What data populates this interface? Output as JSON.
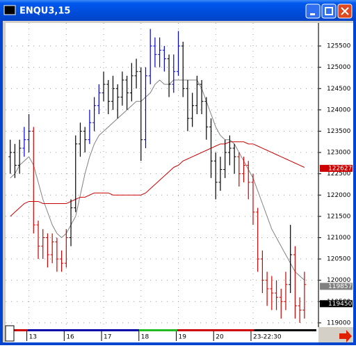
{
  "window_title": "ENQU3,15",
  "chart_data": {
    "type": "ohlc",
    "x": [
      0,
      1,
      2,
      3,
      4,
      5,
      6,
      7,
      8,
      9,
      10,
      11,
      12,
      13,
      14,
      15,
      16,
      17,
      18,
      19,
      20,
      21,
      22,
      23,
      24,
      25,
      26,
      27,
      28,
      29,
      30,
      31,
      32,
      33,
      34,
      35,
      36,
      37,
      38,
      39,
      40,
      41,
      42,
      43,
      44,
      45,
      46,
      47,
      48,
      49,
      50,
      51,
      52,
      53,
      54,
      55,
      56,
      57,
      58,
      59,
      60,
      61,
      62,
      63
    ],
    "open": [
      122900,
      123000,
      122700,
      123100,
      123300,
      123500,
      121300,
      120800,
      121000,
      120600,
      120900,
      120500,
      120400,
      121000,
      121700,
      123200,
      123500,
      123300,
      123700,
      124100,
      124400,
      124600,
      124200,
      124500,
      124300,
      124700,
      124400,
      124800,
      124900,
      123300,
      124800,
      125500,
      125300,
      125400,
      125200,
      124600,
      124900,
      125500,
      124500,
      123800,
      124100,
      124600,
      124200,
      123600,
      122800,
      122300,
      122600,
      123000,
      123100,
      122900,
      122500,
      122700,
      122300,
      121600,
      120500,
      120000,
      119800,
      119700,
      119600,
      119500,
      119900,
      120600,
      119400,
      119300
    ],
    "high": [
      123300,
      123200,
      123300,
      123600,
      123900,
      123600,
      121400,
      121200,
      121100,
      121100,
      121000,
      120700,
      121200,
      121900,
      123400,
      123700,
      123600,
      124000,
      124300,
      124600,
      124900,
      124700,
      124800,
      124600,
      124900,
      124800,
      125100,
      125200,
      125000,
      125000,
      125900,
      125700,
      125700,
      125500,
      125300,
      125300,
      125850,
      125600,
      124700,
      124400,
      124800,
      124700,
      124300,
      123800,
      123000,
      122900,
      123300,
      123400,
      123200,
      123000,
      122900,
      122800,
      122500,
      121700,
      120700,
      120200,
      120100,
      120000,
      119800,
      120200,
      121300,
      120800,
      119600,
      120200
    ],
    "low": [
      122500,
      122400,
      122500,
      122900,
      123000,
      121100,
      120500,
      120500,
      120300,
      120400,
      120200,
      120200,
      120300,
      120800,
      121600,
      122900,
      123000,
      123200,
      123500,
      123900,
      124200,
      123900,
      124000,
      123800,
      124100,
      124000,
      124200,
      124500,
      122800,
      123100,
      124600,
      125000,
      125000,
      124900,
      124300,
      124400,
      124800,
      124300,
      123500,
      123600,
      123900,
      123900,
      123300,
      122400,
      121900,
      122100,
      122400,
      122700,
      122500,
      122200,
      122300,
      121900,
      121300,
      120200,
      119700,
      119400,
      119300,
      119300,
      119100,
      119300,
      119700,
      119100,
      119000,
      119100
    ],
    "close": [
      123000,
      122700,
      123100,
      123300,
      123500,
      121300,
      120800,
      121000,
      120600,
      120900,
      120500,
      120400,
      121000,
      121700,
      123200,
      123500,
      123300,
      123700,
      124100,
      124400,
      124600,
      124200,
      124500,
      124300,
      124700,
      124400,
      124800,
      124900,
      123300,
      124800,
      125500,
      125300,
      125400,
      125200,
      124600,
      124900,
      125500,
      124500,
      123800,
      124100,
      124600,
      124200,
      123600,
      122800,
      122300,
      122600,
      123000,
      123100,
      122900,
      122500,
      122700,
      122300,
      121600,
      120500,
      120000,
      119800,
      119700,
      119600,
      119500,
      119900,
      120600,
      119400,
      119300,
      119900
    ],
    "colors": [
      "#000000",
      "#000000",
      "#000000",
      "#0000cc",
      "#0000cc",
      "#cc0000",
      "#cc0000",
      "#cc0000",
      "#cc0000",
      "#cc0000",
      "#cc0000",
      "#cc0000",
      "#cc0000",
      "#000000",
      "#000000",
      "#000000",
      "#000000",
      "#0000cc",
      "#0000cc",
      "#0000cc",
      "#000000",
      "#000000",
      "#000000",
      "#000000",
      "#000000",
      "#000000",
      "#000000",
      "#000000",
      "#000000",
      "#0000cc",
      "#0000cc",
      "#0000cc",
      "#0000cc",
      "#0000cc",
      "#000000",
      "#0000cc",
      "#0000cc",
      "#000000",
      "#000000",
      "#000000",
      "#000000",
      "#000000",
      "#000000",
      "#000000",
      "#000000",
      "#000000",
      "#000000",
      "#000000",
      "#000000",
      "#cc0000",
      "#cc0000",
      "#cc0000",
      "#cc0000",
      "#cc0000",
      "#cc0000",
      "#cc0000",
      "#cc0000",
      "#cc0000",
      "#cc0000",
      "#cc0000",
      "#000000",
      "#cc0000",
      "#cc0000",
      "#cc0000"
    ],
    "series": [
      {
        "color": "#808080",
        "values": [
          122400,
          122500,
          122700,
          122800,
          122900,
          122700,
          122300,
          121900,
          121600,
          121300,
          121100,
          121000,
          121100,
          121300,
          121500,
          122000,
          122500,
          122900,
          123200,
          123400,
          123500,
          123600,
          123700,
          123800,
          123900,
          124000,
          124100,
          124200,
          124200,
          124300,
          124400,
          124600,
          124700,
          124600,
          124600,
          124700,
          124700,
          124700,
          124700,
          124700,
          124700,
          124500,
          124200,
          123900,
          123600,
          123400,
          123300,
          123300,
          123200,
          123000,
          122800,
          122600,
          122400,
          122100,
          121800,
          121500,
          121200,
          121000,
          120800,
          120600,
          120400,
          120200,
          120100,
          120000
        ]
      },
      {
        "color": "#cc0000",
        "values": [
          121500,
          121600,
          121700,
          121800,
          121850,
          121850,
          121850,
          121800,
          121800,
          121800,
          121800,
          121800,
          121800,
          121850,
          121900,
          121950,
          121950,
          122000,
          122050,
          122050,
          122050,
          122050,
          122000,
          122000,
          122000,
          122000,
          122000,
          122000,
          122000,
          122050,
          122150,
          122250,
          122350,
          122450,
          122550,
          122650,
          122700,
          122800,
          122850,
          122900,
          122950,
          123000,
          123050,
          123100,
          123150,
          123200,
          123200,
          123250,
          123250,
          123250,
          123250,
          123200,
          123200,
          123150,
          123100,
          123050,
          123000,
          122950,
          122900,
          122850,
          122800,
          122750,
          122700,
          122650
        ]
      }
    ],
    "price_markers": [
      {
        "value": 122627,
        "color": "#cc0000"
      },
      {
        "value": 119857,
        "color": "#808080"
      },
      {
        "value": 119450,
        "color": "#000000"
      }
    ],
    "xlim": [
      -1,
      66
    ],
    "xticks": [
      {
        "value": 4,
        "label": "13"
      },
      {
        "value": 12,
        "label": "16"
      },
      {
        "value": 20,
        "label": "17"
      },
      {
        "value": 28,
        "label": "18"
      },
      {
        "value": 36,
        "label": "19"
      },
      {
        "value": 44,
        "label": "20"
      },
      {
        "value": 52,
        "label": "23-22:30"
      }
    ],
    "ylim": [
      118900,
      126040
    ],
    "yticks": [
      119000,
      119500,
      120000,
      120500,
      121000,
      121500,
      122000,
      122500,
      123000,
      123500,
      124000,
      124500,
      125000,
      125500
    ],
    "grid": true
  }
}
